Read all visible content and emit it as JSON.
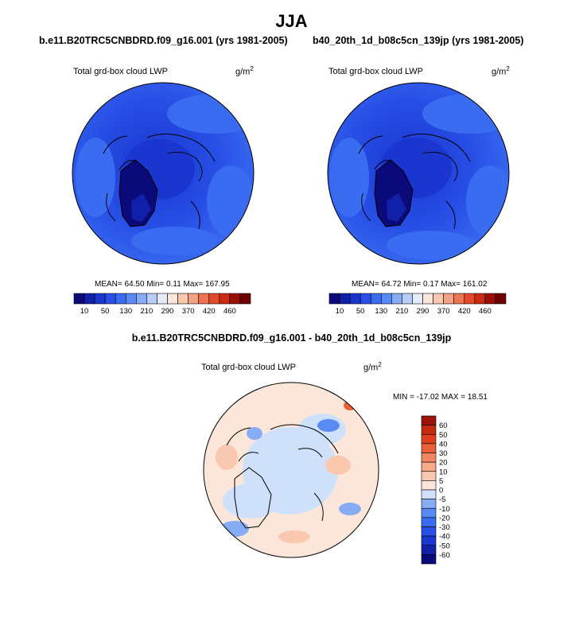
{
  "page": {
    "title": "JJA",
    "diff_title": "b.e11.B20TRC5CNBDRD.f09_g16.001 - b40_20th_1d_b08c5cn_139jp"
  },
  "panels": [
    {
      "case_title": "b.e11.B20TRC5CNBDRD.f09_g16.001 (yrs 1981-2005)",
      "field": "Total grd-box cloud LWP",
      "units_base": "g/m",
      "units_exp": "2",
      "stats": "MEAN=  64.50  Min=   0.11  Max= 167.95"
    },
    {
      "case_title": "b40_20th_1d_b08c5cn_139jp (yrs 1981-2005)",
      "field": "Total grd-box cloud LWP",
      "units_base": "g/m",
      "units_exp": "2",
      "stats": "MEAN=  64.72  Min=   0.17  Max= 161.02"
    }
  ],
  "diff_panel": {
    "field": "Total grd-box cloud LWP",
    "units_base": "g/m",
    "units_exp": "2",
    "stats": "MIN = -17.02 MAX =  18.51"
  },
  "chart_data": [
    {
      "type": "heatmap",
      "projection": "north-polar-stereographic",
      "title": "b.e11.B20TRC5CNBDRD.f09_g16.001 (yrs 1981-2005)",
      "field": "Total grd-box cloud LWP",
      "units": "g/m2",
      "mean": 64.5,
      "min": 0.11,
      "max": 167.95,
      "colorbar_levels": [
        10,
        50,
        130,
        210,
        290,
        370,
        420,
        460
      ],
      "colorbar_colors": [
        "#0a0a7a",
        "#1020a8",
        "#1a36cf",
        "#2850e6",
        "#3a6cf2",
        "#5a8af4",
        "#86acf6",
        "#b6cdf9",
        "#e4ecfb",
        "#fce6da",
        "#f9c8ae",
        "#f4a283",
        "#ee7452",
        "#e34a2a",
        "#cc2a12",
        "#9a0f06",
        "#6e0000"
      ],
      "colorbar_labels": [
        "10",
        "50",
        "130",
        "210",
        "290",
        "370",
        "420",
        "460"
      ]
    },
    {
      "type": "heatmap",
      "projection": "north-polar-stereographic",
      "title": "b40_20th_1d_b08c5cn_139jp (yrs 1981-2005)",
      "field": "Total grd-box cloud LWP",
      "units": "g/m2",
      "mean": 64.72,
      "min": 0.17,
      "max": 161.02,
      "colorbar_levels": [
        10,
        50,
        130,
        210,
        290,
        370,
        420,
        460
      ],
      "colorbar_colors": [
        "#0a0a7a",
        "#1020a8",
        "#1a36cf",
        "#2850e6",
        "#3a6cf2",
        "#5a8af4",
        "#86acf6",
        "#b6cdf9",
        "#e4ecfb",
        "#fce6da",
        "#f9c8ae",
        "#f4a283",
        "#ee7452",
        "#e34a2a",
        "#cc2a12",
        "#9a0f06",
        "#6e0000"
      ],
      "colorbar_labels": [
        "10",
        "50",
        "130",
        "210",
        "290",
        "370",
        "420",
        "460"
      ]
    },
    {
      "type": "heatmap",
      "projection": "north-polar-stereographic",
      "title": "b.e11.B20TRC5CNBDRD.f09_g16.001 - b40_20th_1d_b08c5cn_139jp",
      "field": "Total grd-box cloud LWP",
      "units": "g/m2",
      "min": -17.02,
      "max": 18.51,
      "colorbar_levels": [
        -60,
        -50,
        -40,
        -30,
        -20,
        -10,
        -5,
        0,
        5,
        10,
        20,
        30,
        40,
        50,
        60
      ],
      "colorbar_colors": [
        "#0a0a7a",
        "#1020a8",
        "#1a36cf",
        "#2850e6",
        "#3a6cf2",
        "#5a8af4",
        "#86acf6",
        "#cfe0fa",
        "#fce6da",
        "#f9c8ae",
        "#f6aa88",
        "#f28660",
        "#ec6038",
        "#dd3e1c",
        "#c42a10",
        "#9a1208"
      ],
      "colorbar_labels": [
        "-60",
        "-50",
        "-40",
        "-30",
        "-20",
        "-10",
        "-5",
        "0",
        "5",
        "10",
        "20",
        "30",
        "40",
        "50",
        "60"
      ]
    }
  ]
}
